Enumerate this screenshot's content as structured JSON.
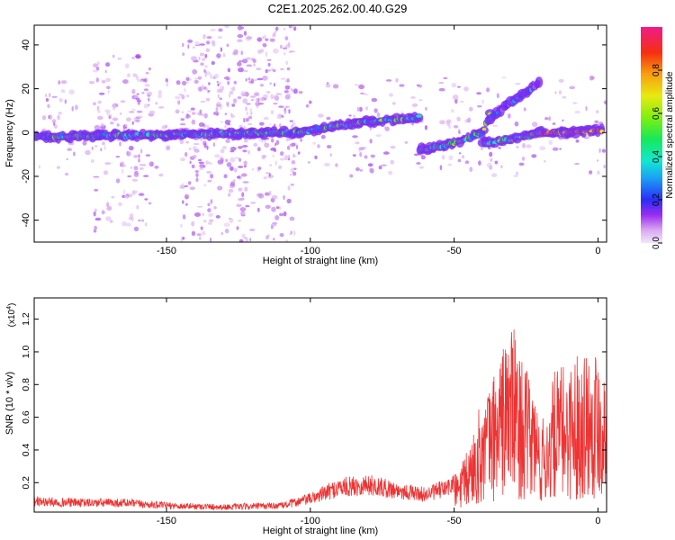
{
  "title": "C2E1.2025.262.00.40.G29",
  "chart_data": [
    {
      "type": "heatmap",
      "xlabel": "Height of straight line (km)",
      "ylabel": "Frequency (Hz)",
      "xlim": [
        -196,
        3
      ],
      "ylim": [
        -50,
        49
      ],
      "xticks": [
        -150,
        -100,
        -50,
        0
      ],
      "yticks": [
        -40,
        -20,
        0,
        20,
        40
      ],
      "colorbar": {
        "label": "Normalized spectral amplitude",
        "range": [
          0,
          1
        ],
        "ticks": [
          0,
          0.2,
          0.4,
          0.6,
          0.8
        ]
      },
      "ridges": [
        {
          "name": "",
          "points": [
            [
              -196,
              -2
            ],
            [
              -105,
              0
            ],
            [
              -95,
              2
            ],
            [
              -80,
              5
            ],
            [
              -70,
              6
            ],
            [
              -62,
              7
            ]
          ]
        },
        {
          "name": "",
          "points": [
            [
              -62,
              -8
            ],
            [
              -50,
              -5
            ],
            [
              -40,
              0
            ],
            [
              -37,
              10
            ]
          ]
        },
        {
          "name": "",
          "points": [
            [
              -40,
              -5
            ],
            [
              -30,
              -3
            ],
            [
              -20,
              0
            ],
            [
              -10,
              0
            ],
            [
              0,
              1
            ],
            [
              2,
              1
            ]
          ]
        },
        {
          "name": "",
          "points": [
            [
              -38,
              6
            ],
            [
              -30,
              14
            ],
            [
              -20,
              23
            ]
          ]
        }
      ]
    },
    {
      "type": "line",
      "xlabel": "Height of straight line (km)",
      "ylabel": "SNR (10 * v/v)",
      "y_multiplier": "(x10",
      "y_multiplier_exp": "4",
      "y_multiplier_close": ")",
      "xlim": [
        -196,
        3
      ],
      "ylim": [
        0.02,
        1.33
      ],
      "xticks": [
        -150,
        -100,
        -50,
        0
      ],
      "yticks": [
        0.2,
        0.4,
        0.6,
        0.8,
        1.0,
        1.2
      ],
      "color": "#ee3333",
      "envelope": [
        [
          -196,
          0.1
        ],
        [
          -180,
          0.09
        ],
        [
          -165,
          0.09
        ],
        [
          -150,
          0.07
        ],
        [
          -130,
          0.06
        ],
        [
          -110,
          0.07
        ],
        [
          -100,
          0.12
        ],
        [
          -90,
          0.2
        ],
        [
          -80,
          0.22
        ],
        [
          -70,
          0.18
        ],
        [
          -60,
          0.15
        ],
        [
          -52,
          0.2
        ],
        [
          -48,
          0.28
        ],
        [
          -45,
          0.4
        ],
        [
          -42,
          0.6
        ],
        [
          -38,
          0.75
        ],
        [
          -35,
          0.9
        ],
        [
          -32,
          1.05
        ],
        [
          -30,
          1.15
        ],
        [
          -28,
          1.0
        ],
        [
          -25,
          0.85
        ],
        [
          -22,
          0.75
        ],
        [
          -20,
          0.55
        ],
        [
          -18,
          0.6
        ],
        [
          -15,
          0.85
        ],
        [
          -10,
          0.9
        ],
        [
          -5,
          1.0
        ],
        [
          0,
          1.0
        ],
        [
          3,
          0.85
        ]
      ]
    }
  ]
}
